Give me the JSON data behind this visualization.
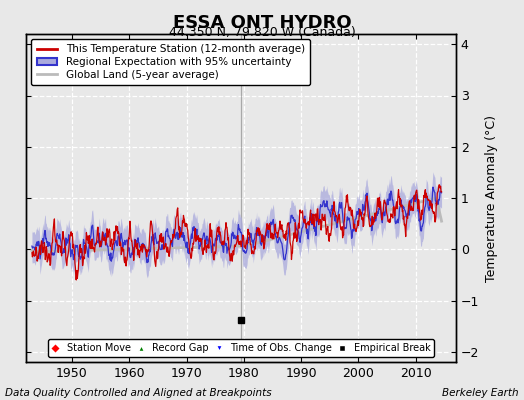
{
  "title": "ESSA ONT HYDRO",
  "subtitle": "44.350 N, 79.820 W (Canada)",
  "ylabel": "Temperature Anomaly (°C)",
  "ylim": [
    -2.2,
    4.2
  ],
  "xlim": [
    1942,
    2017
  ],
  "xticks": [
    1950,
    1960,
    1970,
    1980,
    1990,
    2000,
    2010
  ],
  "yticks": [
    -2,
    -1,
    0,
    1,
    2,
    3,
    4
  ],
  "station_color": "#cc0000",
  "regional_color": "#3333cc",
  "regional_fill_color": "#aaaadd",
  "global_color": "#bbbbbb",
  "bg_color": "#e8e8e8",
  "grid_color": "#ffffff",
  "footer_left": "Data Quality Controlled and Aligned at Breakpoints",
  "footer_right": "Berkeley Earth",
  "empirical_break_year": 1979.5,
  "title_fontsize": 13,
  "subtitle_fontsize": 9,
  "legend_fontsize": 7.5,
  "footer_fontsize": 7.5
}
